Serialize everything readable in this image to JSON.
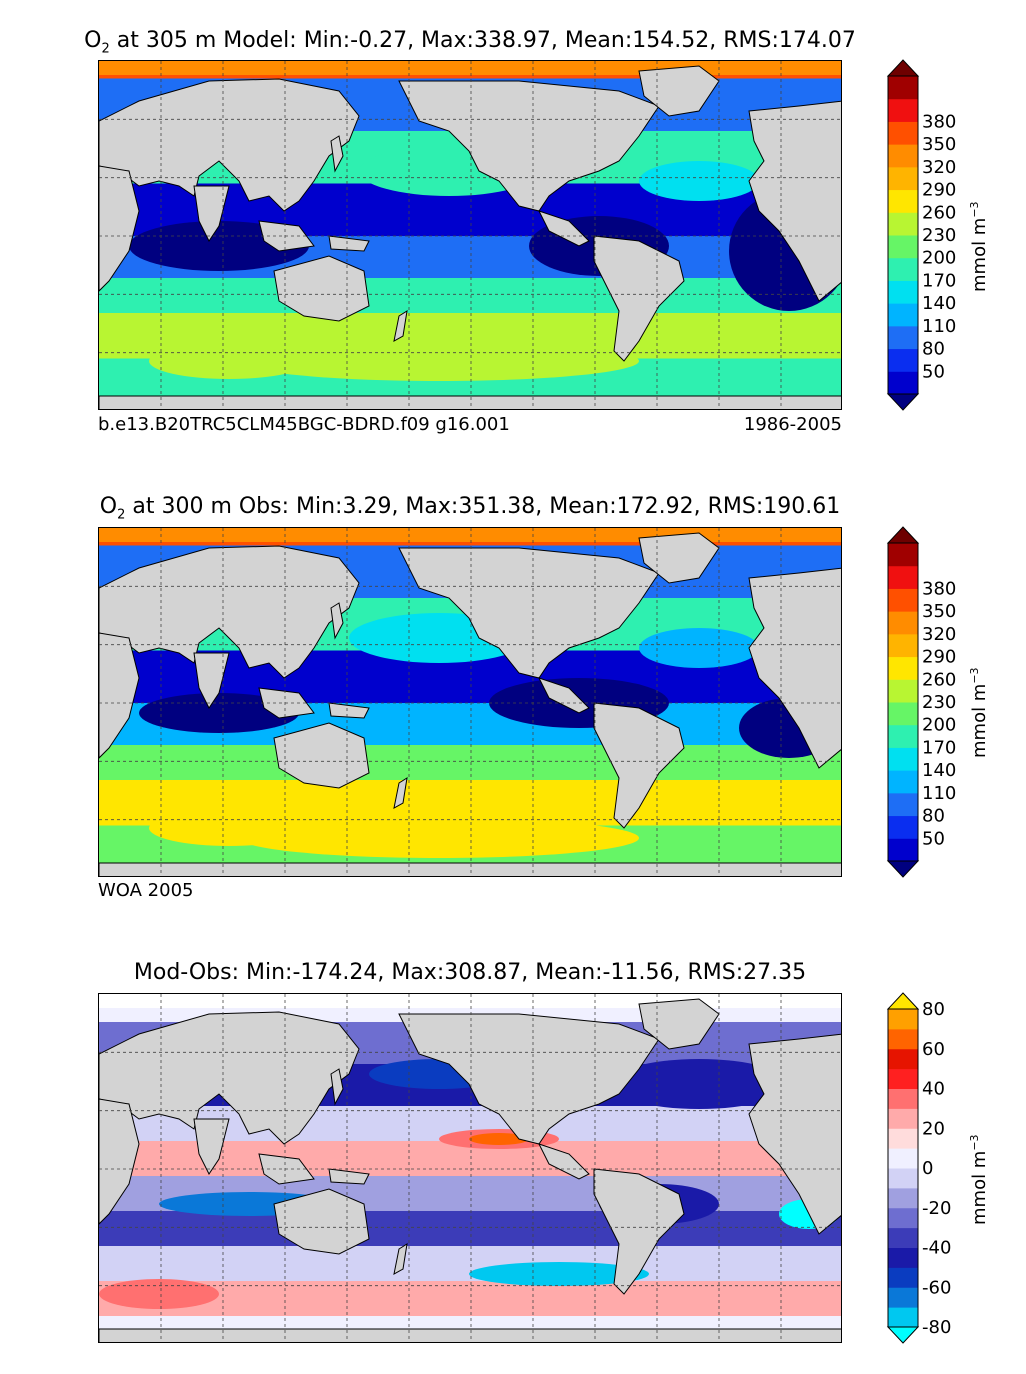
{
  "panels": [
    {
      "id": "model",
      "title_var": "O",
      "title_sub": "2",
      "title_rest": " at 305 m Model: Min:-0.27, Max:338.97, Mean:154.52, RMS:174.07",
      "left_text": "b.e13.B20TRC5CLM45BGC-BDRD.f09 g16.001",
      "right_text": "1986-2005",
      "colorbar_label_main": "mmol m",
      "colorbar_label_sup": "−3",
      "colorbar_ticks": [
        "50",
        "80",
        "110",
        "140",
        "170",
        "200",
        "230",
        "260",
        "290",
        "320",
        "350",
        "380"
      ],
      "colorbar_colors": [
        "#000080",
        "#0000cd",
        "#0a2ef0",
        "#1e6ef5",
        "#00b4ff",
        "#00e0f0",
        "#2ef0b0",
        "#66f566",
        "#b8f532",
        "#ffe600",
        "#ffb400",
        "#ff8c00",
        "#ff5000",
        "#f01010",
        "#a00000",
        "#6e0000"
      ]
    },
    {
      "id": "obs",
      "title_var": "O",
      "title_sub": "2",
      "title_rest": " at 300 m Obs: Min:3.29, Max:351.38, Mean:172.92, RMS:190.61",
      "left_text": "WOA 2005",
      "right_text": "",
      "colorbar_label_main": "mmol m",
      "colorbar_label_sup": "−3",
      "colorbar_ticks": [
        "50",
        "80",
        "110",
        "140",
        "170",
        "200",
        "230",
        "260",
        "290",
        "320",
        "350",
        "380"
      ],
      "colorbar_colors": [
        "#000080",
        "#0000cd",
        "#0a2ef0",
        "#1e6ef5",
        "#00b4ff",
        "#00e0f0",
        "#2ef0b0",
        "#66f566",
        "#b8f532",
        "#ffe600",
        "#ffb400",
        "#ff8c00",
        "#ff5000",
        "#f01010",
        "#a00000",
        "#6e0000"
      ]
    },
    {
      "id": "diff",
      "title_var": "",
      "title_sub": "",
      "title_rest": "Mod-Obs: Min:-174.24, Max:308.87, Mean:-11.56, RMS:27.35",
      "left_text": "",
      "right_text": "",
      "colorbar_label_main": "mmol m",
      "colorbar_label_sup": "−3",
      "colorbar_ticks": [
        "-80",
        "-60",
        "-40",
        "-20",
        "0",
        "20",
        "40",
        "60",
        "80"
      ],
      "colorbar_colors": [
        "#00ffff",
        "#00c8f0",
        "#0a78d8",
        "#0a3cc0",
        "#1a1aa8",
        "#3c3cb8",
        "#6e6ed0",
        "#a0a0e0",
        "#d2d2f5",
        "#f0f0ff",
        "#ffdcdc",
        "#ffaaaa",
        "#ff7070",
        "#ff2020",
        "#e61400",
        "#ff6400",
        "#ffa000",
        "#ffe600"
      ]
    }
  ],
  "chart_data": [
    {
      "type": "heatmap",
      "title": "O2 at 305 m Model: Min:-0.27, Max:338.97, Mean:154.52, RMS:174.07",
      "variable": "O2",
      "depth_m": 305,
      "source": "Model",
      "stats": {
        "min": -0.27,
        "max": 338.97,
        "mean": 154.52,
        "rms": 174.07
      },
      "colorbar_levels": [
        50,
        80,
        110,
        140,
        170,
        200,
        230,
        260,
        290,
        320,
        350,
        380
      ],
      "units": "mmol m-3",
      "grid": true,
      "case": "b.e13.B20TRC5CLM45BGC-BDRD.f09 g16.001",
      "period": "1986-2005"
    },
    {
      "type": "heatmap",
      "title": "O2 at 300 m Obs: Min:3.29, Max:351.38, Mean:172.92, RMS:190.61",
      "variable": "O2",
      "depth_m": 300,
      "source": "Obs",
      "stats": {
        "min": 3.29,
        "max": 351.38,
        "mean": 172.92,
        "rms": 190.61
      },
      "colorbar_levels": [
        50,
        80,
        110,
        140,
        170,
        200,
        230,
        260,
        290,
        320,
        350,
        380
      ],
      "units": "mmol m-3",
      "grid": true,
      "dataset": "WOA 2005"
    },
    {
      "type": "heatmap",
      "title": "Mod-Obs: Min:-174.24, Max:308.87, Mean:-11.56, RMS:27.35",
      "source": "Mod-Obs",
      "stats": {
        "min": -174.24,
        "max": 308.87,
        "mean": -11.56,
        "rms": 27.35
      },
      "colorbar_levels": [
        -80,
        -60,
        -40,
        -20,
        0,
        20,
        40,
        60,
        80
      ],
      "units": "mmol m-3",
      "grid": true
    }
  ]
}
